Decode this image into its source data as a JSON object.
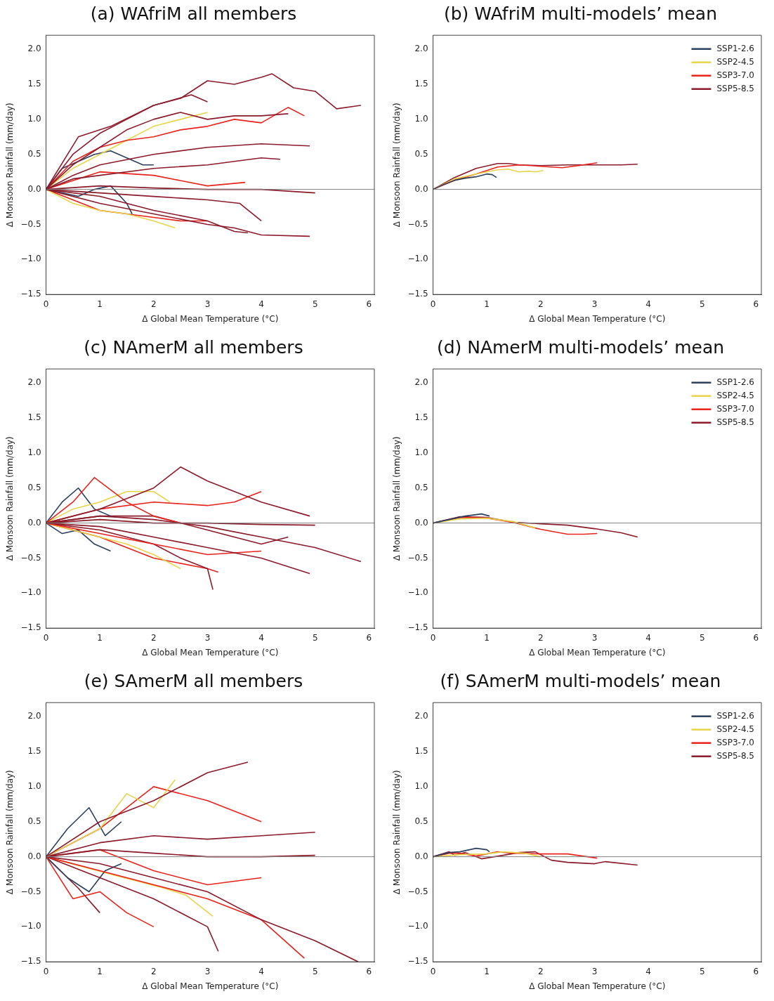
{
  "chart_data": [
    {
      "type": "line",
      "title": "(a) WAfriM all members",
      "xlabel": "Δ Global Mean Temperature (°C)",
      "ylabel": "Δ Monsoon Rainfall (mm/day)",
      "xlim": [
        0,
        6.1
      ],
      "ylim": [
        -1.5,
        2.2
      ],
      "xticks": [
        0,
        1,
        2,
        3,
        4,
        5,
        6
      ],
      "yticks": [
        {
          "value": -1.5,
          "label": "−1.5"
        },
        {
          "value": -1,
          "label": "−1.0"
        },
        {
          "value": -0.5,
          "label": "−0.5"
        },
        {
          "value": 0,
          "label": "0.0"
        },
        {
          "value": 0.5,
          "label": "0.5"
        },
        {
          "value": 1,
          "label": "1.0"
        },
        {
          "value": 1.5,
          "label": "1.5"
        },
        {
          "value": 2,
          "label": "2.0"
        }
      ],
      "grid": false,
      "legend": false,
      "marker": "none",
      "line_style": "solid",
      "ref_lines": [
        {
          "axis": "y",
          "value": 0,
          "color": "#808080"
        }
      ],
      "series": [
        {
          "color": "#8b1a2b",
          "x": [
            0,
            0.5,
            1,
            1.5,
            2,
            2.5,
            3,
            3.5,
            4,
            4.2,
            4.6,
            5,
            5.4,
            5.85
          ],
          "values": [
            0,
            0.5,
            0.8,
            1.0,
            1.2,
            1.3,
            1.55,
            1.5,
            1.6,
            1.65,
            1.45,
            1.4,
            1.15,
            1.2
          ]
        },
        {
          "color": "#8b1a2b",
          "x": [
            0,
            0.5,
            1,
            1.5,
            2,
            2.5,
            3,
            3.5,
            4,
            4.5
          ],
          "values": [
            0,
            0.35,
            0.6,
            0.85,
            1.0,
            1.1,
            1.0,
            1.05,
            1.05,
            1.08
          ]
        },
        {
          "color": "#e8221c",
          "x": [
            0,
            0.5,
            1,
            1.5,
            2,
            2.5,
            3,
            3.5,
            4,
            4.5,
            4.8
          ],
          "values": [
            0,
            0.4,
            0.6,
            0.7,
            0.75,
            0.85,
            0.9,
            1.0,
            0.95,
            1.17,
            1.05
          ]
        },
        {
          "color": "#8b1a2b",
          "x": [
            0,
            0.5,
            1,
            2,
            3,
            4,
            4.9
          ],
          "values": [
            0,
            0.2,
            0.35,
            0.5,
            0.6,
            0.65,
            0.62
          ]
        },
        {
          "color": "#8b1a2b",
          "x": [
            0,
            0.5,
            1,
            2,
            3,
            4,
            4.35
          ],
          "values": [
            0,
            0.15,
            0.2,
            0.3,
            0.35,
            0.45,
            0.43
          ]
        },
        {
          "color": "#8b1a2b",
          "x": [
            0,
            1,
            2,
            3,
            4,
            5
          ],
          "values": [
            0,
            0.05,
            0.02,
            0.0,
            0.0,
            -0.05
          ]
        },
        {
          "color": "#8b1a2b",
          "x": [
            0,
            1,
            2,
            3,
            3.5,
            4,
            4.9
          ],
          "values": [
            0,
            -0.2,
            -0.35,
            -0.5,
            -0.55,
            -0.65,
            -0.67
          ]
        },
        {
          "color": "#8b1a2b",
          "x": [
            0,
            1,
            2,
            3,
            3.5,
            3.75
          ],
          "values": [
            0,
            -0.1,
            -0.3,
            -0.45,
            -0.6,
            -0.62
          ]
        },
        {
          "color": "#8b1a2b",
          "x": [
            0,
            1,
            2,
            3,
            3.6,
            4.0
          ],
          "values": [
            0,
            -0.05,
            -0.1,
            -0.15,
            -0.2,
            -0.45
          ]
        },
        {
          "color": "#e8d44a",
          "x": [
            0,
            0.5,
            1,
            1.5,
            2,
            2.5,
            3
          ],
          "values": [
            0,
            0.3,
            0.5,
            0.7,
            0.9,
            1.0,
            1.1
          ]
        },
        {
          "color": "#e8d44a",
          "x": [
            0,
            0.5,
            1,
            1.5,
            2,
            2.4
          ],
          "values": [
            0,
            -0.2,
            -0.3,
            -0.35,
            -0.45,
            -0.55
          ]
        },
        {
          "color": "#2b3f5c",
          "x": [
            0,
            0.3,
            0.6,
            0.9,
            1.2,
            1.5,
            1.8,
            2
          ],
          "values": [
            0,
            0.3,
            0.4,
            0.5,
            0.55,
            0.45,
            0.35,
            0.35
          ]
        },
        {
          "color": "#2b3f5c",
          "x": [
            0,
            0.3,
            0.6,
            0.9,
            1.2,
            1.5,
            1.6
          ],
          "values": [
            0,
            -0.05,
            -0.1,
            0.0,
            0.05,
            -0.2,
            -0.35
          ]
        },
        {
          "color": "#e8221c",
          "x": [
            0,
            0.5,
            1,
            1.5,
            2,
            2.5,
            3
          ],
          "values": [
            0,
            -0.15,
            -0.3,
            -0.35,
            -0.4,
            -0.45,
            -0.45
          ]
        },
        {
          "color": "#e8221c",
          "x": [
            0,
            1,
            2,
            3,
            3.7
          ],
          "values": [
            0,
            0.25,
            0.2,
            0.05,
            0.1
          ]
        },
        {
          "color": "#8b1a2b",
          "x": [
            0,
            0.6,
            1.2,
            2,
            2.7,
            3
          ],
          "values": [
            0,
            0.75,
            0.9,
            1.2,
            1.35,
            1.25
          ]
        }
      ]
    },
    {
      "type": "line",
      "title": "(b) WAfriM multi-models’ mean",
      "xlabel": "Δ Global Mean Temperature (°C)",
      "ylabel": "Δ Monsoon Rainfall (mm/day)",
      "xlim": [
        0,
        6.1
      ],
      "ylim": [
        -1.5,
        2.2
      ],
      "xticks": [
        0,
        1,
        2,
        3,
        4,
        5,
        6
      ],
      "yticks": [
        {
          "value": -1.5,
          "label": "−1.5"
        },
        {
          "value": -1,
          "label": "−1.0"
        },
        {
          "value": -0.5,
          "label": "−0.5"
        },
        {
          "value": 0,
          "label": "0.0"
        },
        {
          "value": 0.5,
          "label": "0.5"
        },
        {
          "value": 1,
          "label": "1.0"
        },
        {
          "value": 1.5,
          "label": "1.5"
        },
        {
          "value": 2,
          "label": "2.0"
        }
      ],
      "grid": false,
      "legend": "top right",
      "marker": "none",
      "line_style": "solid",
      "ref_lines": [
        {
          "axis": "y",
          "value": 0,
          "color": "#808080"
        }
      ],
      "series": [
        {
          "name": "SSP1-2.6",
          "color": "#2b3f5c",
          "x": [
            0,
            0.2,
            0.4,
            0.6,
            0.8,
            1.0,
            1.1,
            1.18
          ],
          "values": [
            0,
            0.07,
            0.13,
            0.16,
            0.18,
            0.22,
            0.21,
            0.17
          ]
        },
        {
          "name": "SSP2-4.5",
          "color": "#e8d44a",
          "x": [
            0,
            0.4,
            0.8,
            1.2,
            1.4,
            1.6,
            1.8,
            1.9,
            2.05
          ],
          "values": [
            0,
            0.15,
            0.22,
            0.28,
            0.29,
            0.25,
            0.26,
            0.25,
            0.27
          ]
        },
        {
          "name": "SSP3-7.0",
          "color": "#e8221c",
          "x": [
            0,
            0.4,
            0.8,
            1.2,
            1.6,
            2,
            2.4,
            2.7,
            3.05
          ],
          "values": [
            0,
            0.13,
            0.22,
            0.32,
            0.35,
            0.33,
            0.31,
            0.34,
            0.38
          ]
        },
        {
          "name": "SSP5-8.5",
          "color": "#8b1a2b",
          "x": [
            0,
            0.4,
            0.8,
            1.2,
            1.4,
            1.6,
            2,
            2.5,
            3,
            3.5,
            3.8
          ],
          "values": [
            0,
            0.17,
            0.3,
            0.37,
            0.37,
            0.35,
            0.34,
            0.35,
            0.35,
            0.35,
            0.36
          ]
        }
      ]
    },
    {
      "type": "line",
      "title": "(c) NAmerM all members",
      "xlabel": "Δ Global Mean Temperature (°C)",
      "ylabel": "Δ Monsoon Rainfall (mm/day)",
      "xlim": [
        0,
        6.1
      ],
      "ylim": [
        -1.5,
        2.2
      ],
      "xticks": [
        0,
        1,
        2,
        3,
        4,
        5,
        6
      ],
      "yticks": [
        {
          "value": -1.5,
          "label": "−1.5"
        },
        {
          "value": -1,
          "label": "−1.0"
        },
        {
          "value": -0.5,
          "label": "−0.5"
        },
        {
          "value": 0,
          "label": "0.0"
        },
        {
          "value": 0.5,
          "label": "0.5"
        },
        {
          "value": 1,
          "label": "1.0"
        },
        {
          "value": 1.5,
          "label": "1.5"
        },
        {
          "value": 2,
          "label": "2.0"
        }
      ],
      "grid": false,
      "legend": false,
      "marker": "none",
      "line_style": "solid",
      "ref_lines": [
        {
          "axis": "y",
          "value": 0,
          "color": "#808080"
        }
      ],
      "series": [
        {
          "color": "#8b1a2b",
          "x": [
            0,
            1,
            2,
            3,
            4,
            5,
            5.85
          ],
          "values": [
            0,
            0.1,
            0.05,
            -0.05,
            -0.2,
            -0.35,
            -0.55
          ]
        },
        {
          "color": "#8b1a2b",
          "x": [
            0,
            1,
            2,
            2.5,
            3,
            4,
            4.9
          ],
          "values": [
            0,
            0.2,
            0.5,
            0.8,
            0.6,
            0.3,
            0.1
          ]
        },
        {
          "color": "#8b1a2b",
          "x": [
            0,
            1,
            2,
            3,
            4,
            4.9
          ],
          "values": [
            0,
            -0.05,
            -0.2,
            -0.35,
            -0.5,
            -0.72
          ]
        },
        {
          "color": "#e8221c",
          "x": [
            0,
            1,
            2,
            3,
            3.5,
            4
          ],
          "values": [
            0,
            0.2,
            0.3,
            0.25,
            0.3,
            0.45
          ]
        },
        {
          "color": "#e8221c",
          "x": [
            0,
            1,
            2,
            3,
            4
          ],
          "values": [
            0,
            -0.15,
            -0.3,
            -0.45,
            -0.4
          ]
        },
        {
          "color": "#8b1a2b",
          "x": [
            0,
            1,
            2,
            2.5,
            3,
            3.1
          ],
          "values": [
            0,
            -0.1,
            -0.3,
            -0.5,
            -0.65,
            -0.95
          ]
        },
        {
          "color": "#e8221c",
          "x": [
            0,
            0.5,
            0.9,
            1.5,
            2,
            2.5
          ],
          "values": [
            0,
            0.3,
            0.65,
            0.3,
            0.1,
            0.0
          ]
        },
        {
          "color": "#e8d44a",
          "x": [
            0,
            0.5,
            1,
            1.5,
            2,
            2.3
          ],
          "values": [
            0,
            0.2,
            0.3,
            0.45,
            0.45,
            0.3
          ]
        },
        {
          "color": "#e8d44a",
          "x": [
            0,
            0.5,
            1,
            1.5,
            2,
            2.5
          ],
          "values": [
            0,
            -0.1,
            -0.2,
            -0.3,
            -0.45,
            -0.65
          ]
        },
        {
          "color": "#2b3f5c",
          "x": [
            0,
            0.3,
            0.6,
            0.9,
            1.2
          ],
          "values": [
            0,
            0.3,
            0.5,
            0.2,
            0.1
          ]
        },
        {
          "color": "#2b3f5c",
          "x": [
            0,
            0.3,
            0.6,
            0.9,
            1.2
          ],
          "values": [
            0,
            -0.15,
            -0.1,
            -0.3,
            -0.4
          ]
        },
        {
          "color": "#8b1a2b",
          "x": [
            0,
            1,
            2,
            3,
            4,
            5
          ],
          "values": [
            0,
            0.05,
            0.0,
            0.0,
            -0.02,
            -0.03
          ]
        },
        {
          "color": "#e8221c",
          "x": [
            0,
            1,
            2,
            3,
            3.2
          ],
          "values": [
            0,
            -0.2,
            -0.5,
            -0.65,
            -0.7
          ]
        },
        {
          "color": "#8b1a2b",
          "x": [
            0,
            1,
            2,
            3,
            4,
            4.5
          ],
          "values": [
            0,
            0.1,
            0.1,
            -0.1,
            -0.3,
            -0.2
          ]
        }
      ]
    },
    {
      "type": "line",
      "title": "(d) NAmerM multi-models’ mean",
      "xlabel": "Δ Global Mean Temperature (°C)",
      "ylabel": "Δ Monsoon Rainfall (mm/day)",
      "xlim": [
        0,
        6.1
      ],
      "ylim": [
        -1.5,
        2.2
      ],
      "xticks": [
        0,
        1,
        2,
        3,
        4,
        5,
        6
      ],
      "yticks": [
        {
          "value": -1.5,
          "label": "−1.5"
        },
        {
          "value": -1,
          "label": "−1.0"
        },
        {
          "value": -0.5,
          "label": "−0.5"
        },
        {
          "value": 0,
          "label": "0.0"
        },
        {
          "value": 0.5,
          "label": "0.5"
        },
        {
          "value": 1,
          "label": "1.0"
        },
        {
          "value": 1.5,
          "label": "1.5"
        },
        {
          "value": 2,
          "label": "2.0"
        }
      ],
      "grid": false,
      "legend": "top right",
      "marker": "none",
      "line_style": "solid",
      "ref_lines": [
        {
          "axis": "y",
          "value": 0,
          "color": "#808080"
        }
      ],
      "series": [
        {
          "name": "SSP1-2.6",
          "color": "#2b3f5c",
          "x": [
            0,
            0.3,
            0.6,
            0.9,
            1.05
          ],
          "values": [
            0,
            0.05,
            0.1,
            0.13,
            0.1
          ]
        },
        {
          "name": "SSP2-4.5",
          "color": "#e8d44a",
          "x": [
            0,
            0.5,
            1,
            1.5,
            1.9
          ],
          "values": [
            0,
            0.06,
            0.07,
            0.02,
            -0.07
          ]
        },
        {
          "name": "SSP3-7.0",
          "color": "#e8221c",
          "x": [
            0,
            0.5,
            1,
            1.5,
            2,
            2.5,
            2.8,
            3.05
          ],
          "values": [
            0,
            0.08,
            0.07,
            0.01,
            -0.09,
            -0.16,
            -0.16,
            -0.15
          ]
        },
        {
          "name": "SSP5-8.5",
          "color": "#8b1a2b",
          "x": [
            0,
            0.5,
            1,
            1.5,
            2,
            2.5,
            3,
            3.5,
            3.8
          ],
          "values": [
            0,
            0.09,
            0.08,
            0.01,
            -0.01,
            -0.03,
            -0.08,
            -0.14,
            -0.2
          ]
        }
      ]
    },
    {
      "type": "line",
      "title": "(e) SAmerM all members",
      "xlabel": "Δ Global Mean Temperature (°C)",
      "ylabel": "Δ Monsoon Rainfall (mm/day)",
      "xlim": [
        0,
        6.1
      ],
      "ylim": [
        -1.5,
        2.2
      ],
      "xticks": [
        0,
        1,
        2,
        3,
        4,
        5,
        6
      ],
      "yticks": [
        {
          "value": -1.5,
          "label": "−1.5"
        },
        {
          "value": -1,
          "label": "−1.0"
        },
        {
          "value": -0.5,
          "label": "−0.5"
        },
        {
          "value": 0,
          "label": "0.0"
        },
        {
          "value": 0.5,
          "label": "0.5"
        },
        {
          "value": 1,
          "label": "1.0"
        },
        {
          "value": 1.5,
          "label": "1.5"
        },
        {
          "value": 2,
          "label": "2.0"
        }
      ],
      "grid": false,
      "legend": false,
      "marker": "none",
      "line_style": "solid",
      "ref_lines": [
        {
          "axis": "y",
          "value": 0,
          "color": "#808080"
        }
      ],
      "series": [
        {
          "color": "#8b1a2b",
          "x": [
            0,
            1,
            2,
            3,
            3.75
          ],
          "values": [
            0,
            0.5,
            0.8,
            1.2,
            1.35
          ]
        },
        {
          "color": "#e8d44a",
          "x": [
            0,
            0.5,
            1,
            1.5,
            2,
            2.4
          ],
          "values": [
            0,
            0.2,
            0.4,
            0.9,
            0.7,
            1.1
          ]
        },
        {
          "color": "#e8221c",
          "x": [
            0,
            1,
            2,
            3,
            4
          ],
          "values": [
            0,
            0.4,
            1.0,
            0.8,
            0.5
          ]
        },
        {
          "color": "#8b1a2b",
          "x": [
            0,
            1,
            2,
            3,
            4,
            5
          ],
          "values": [
            0,
            0.1,
            0.05,
            0.0,
            0.0,
            0.02
          ]
        },
        {
          "color": "#8b1a2b",
          "x": [
            0,
            1,
            2,
            3,
            4,
            5,
            5.8
          ],
          "values": [
            0,
            -0.1,
            -0.3,
            -0.5,
            -0.9,
            -1.2,
            -1.5
          ]
        },
        {
          "color": "#e8221c",
          "x": [
            0,
            1,
            2,
            3,
            4,
            4.8
          ],
          "values": [
            0,
            -0.2,
            -0.4,
            -0.6,
            -0.9,
            -1.45
          ]
        },
        {
          "color": "#8b1a2b",
          "x": [
            0,
            1,
            2,
            3,
            3.2
          ],
          "values": [
            0,
            -0.3,
            -0.6,
            -1.0,
            -1.35
          ]
        },
        {
          "color": "#e8221c",
          "x": [
            0,
            0.5,
            1,
            1.5,
            2
          ],
          "values": [
            0,
            -0.6,
            -0.5,
            -0.8,
            -1.0
          ]
        },
        {
          "color": "#2b3f5c",
          "x": [
            0,
            0.4,
            0.8,
            1.1,
            1.4
          ],
          "values": [
            0,
            0.4,
            0.7,
            0.3,
            0.5
          ]
        },
        {
          "color": "#2b3f5c",
          "x": [
            0,
            0.4,
            0.8,
            1.1,
            1.4
          ],
          "values": [
            0,
            -0.3,
            -0.5,
            -0.2,
            -0.1
          ]
        },
        {
          "color": "#e8d44a",
          "x": [
            0,
            1.2,
            2.2,
            2.6,
            3.1
          ],
          "values": [
            0,
            -0.25,
            -0.45,
            -0.55,
            -0.85
          ]
        },
        {
          "color": "#8b1a2b",
          "x": [
            0,
            1,
            2,
            3,
            4,
            5
          ],
          "values": [
            0,
            0.2,
            0.3,
            0.25,
            0.3,
            0.35
          ]
        },
        {
          "color": "#8b1a2b",
          "x": [
            0,
            0.6,
            1.0
          ],
          "values": [
            0,
            -0.45,
            -0.8
          ]
        },
        {
          "color": "#e8221c",
          "x": [
            0,
            1,
            2,
            3,
            4
          ],
          "values": [
            0,
            0.1,
            -0.2,
            -0.4,
            -0.3
          ]
        }
      ]
    },
    {
      "type": "line",
      "title": "(f) SAmerM multi-models’ mean",
      "xlabel": "Δ Global Mean Temperature (°C)",
      "ylabel": "Δ Monsoon Rainfall (mm/day)",
      "xlim": [
        0,
        6.1
      ],
      "ylim": [
        -1.5,
        2.2
      ],
      "xticks": [
        0,
        1,
        2,
        3,
        4,
        5,
        6
      ],
      "yticks": [
        {
          "value": -1.5,
          "label": "−1.5"
        },
        {
          "value": -1,
          "label": "−1.0"
        },
        {
          "value": -0.5,
          "label": "−0.5"
        },
        {
          "value": 0,
          "label": "0.0"
        },
        {
          "value": 0.5,
          "label": "0.5"
        },
        {
          "value": 1,
          "label": "1.0"
        },
        {
          "value": 1.5,
          "label": "1.5"
        },
        {
          "value": 2,
          "label": "2.0"
        }
      ],
      "grid": false,
      "legend": "top right",
      "marker": "none",
      "line_style": "solid",
      "ref_lines": [
        {
          "axis": "y",
          "value": 0,
          "color": "#808080"
        }
      ],
      "series": [
        {
          "name": "SSP1-2.6",
          "color": "#2b3f5c",
          "x": [
            0,
            0.3,
            0.5,
            0.8,
            1.0,
            1.05
          ],
          "values": [
            0,
            0.06,
            0.07,
            0.12,
            0.1,
            0.07
          ]
        },
        {
          "name": "SSP2-4.5",
          "color": "#e8d44a",
          "x": [
            0,
            0.5,
            1,
            1.3,
            1.7,
            2
          ],
          "values": [
            0,
            0.03,
            0.04,
            0.07,
            0.05,
            0.0
          ]
        },
        {
          "name": "SSP3-7.0",
          "color": "#e8221c",
          "x": [
            0,
            0.3,
            0.5,
            0.8,
            1.2,
            1.5,
            2,
            2.5,
            3.05
          ],
          "values": [
            0,
            0.05,
            0.05,
            0.01,
            0.07,
            0.05,
            0.04,
            0.04,
            -0.02
          ]
        },
        {
          "name": "SSP5-8.5",
          "color": "#8b1a2b",
          "x": [
            0,
            0.3,
            0.4,
            0.6,
            0.9,
            1.3,
            1.6,
            1.9,
            2.2,
            2.5,
            3,
            3.2,
            3.8
          ],
          "values": [
            0,
            0.07,
            0.02,
            0.06,
            -0.03,
            0.02,
            0.06,
            0.07,
            -0.05,
            -0.08,
            -0.1,
            -0.07,
            -0.12
          ]
        }
      ]
    }
  ]
}
